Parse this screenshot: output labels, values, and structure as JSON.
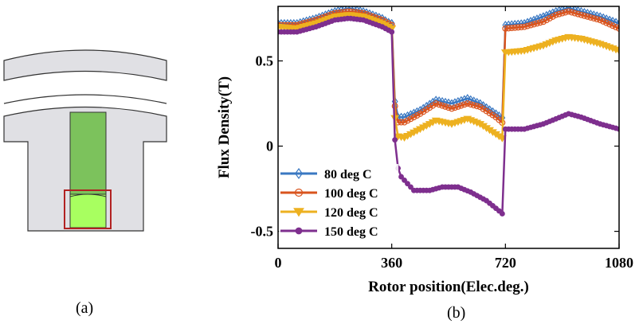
{
  "panel_a": {
    "caption": "(a)",
    "colors": {
      "yoke": "#e0e0e4",
      "magnet_dark": "#7cc25c",
      "magnet_light": "#a8ff60",
      "highlight_box": "#b22222",
      "outline": "#333333"
    }
  },
  "panel_b": {
    "caption": "(b)"
  },
  "chart_data": {
    "type": "line",
    "xlabel": "Rotor position(Elec.deg.)",
    "ylabel": "Flux Density(T)",
    "xlim": [
      0,
      1080
    ],
    "ylim": [
      -0.6,
      0.82
    ],
    "xticks": [
      0,
      360,
      720,
      1080
    ],
    "xtick_labels": [
      "0",
      "360",
      "720",
      "1080"
    ],
    "yticks": [
      -0.5,
      0,
      0.5
    ],
    "ytick_labels": [
      "-0.5",
      "0",
      "0.5"
    ],
    "grid": false,
    "legend_position": "bottom-left",
    "series": [
      {
        "name": "80 deg C",
        "color": "#3a78c2",
        "marker": "diamond",
        "segments": [
          {
            "x_start": 0,
            "x_end": 705,
            "anchors": [
              [
                0,
                0.72
              ],
              [
                60,
                0.72
              ],
              [
                120,
                0.75
              ],
              [
                180,
                0.79
              ],
              [
                225,
                0.81
              ],
              [
                270,
                0.79
              ],
              [
                330,
                0.75
              ],
              [
                345,
                0.73
              ],
              [
                360,
                0.72
              ]
            ],
            "ripple": 0.008
          },
          {
            "x_start": 360,
            "x_end": 705,
            "anchors": [
              [
                360,
                0.72
              ],
              [
                372,
                0.17
              ],
              [
                400,
                0.17
              ],
              [
                450,
                0.21
              ],
              [
                500,
                0.27
              ],
              [
                550,
                0.25
              ],
              [
                600,
                0.28
              ],
              [
                640,
                0.25
              ],
              [
                690,
                0.19
              ],
              [
                715,
                0.16
              ]
            ],
            "ripple": 0.012
          },
          {
            "x_start": 720,
            "x_end": 1080,
            "anchors": [
              [
                720,
                0.71
              ],
              [
                780,
                0.72
              ],
              [
                840,
                0.76
              ],
              [
                880,
                0.79
              ],
              [
                920,
                0.81
              ],
              [
                960,
                0.79
              ],
              [
                1020,
                0.76
              ],
              [
                1080,
                0.72
              ]
            ],
            "ripple": 0.008
          }
        ]
      },
      {
        "name": "100 deg C",
        "color": "#d9541e",
        "marker": "circle",
        "segments": [
          {
            "anchors": [
              [
                0,
                0.71
              ],
              [
                60,
                0.71
              ],
              [
                120,
                0.74
              ],
              [
                180,
                0.78
              ],
              [
                225,
                0.79
              ],
              [
                270,
                0.78
              ],
              [
                330,
                0.74
              ],
              [
                360,
                0.71
              ]
            ],
            "ripple": 0.008
          },
          {
            "anchors": [
              [
                360,
                0.71
              ],
              [
                372,
                0.14
              ],
              [
                400,
                0.14
              ],
              [
                450,
                0.19
              ],
              [
                500,
                0.25
              ],
              [
                550,
                0.22
              ],
              [
                600,
                0.25
              ],
              [
                640,
                0.23
              ],
              [
                690,
                0.17
              ],
              [
                715,
                0.13
              ]
            ],
            "ripple": 0.012
          },
          {
            "anchors": [
              [
                720,
                0.69
              ],
              [
                780,
                0.7
              ],
              [
                840,
                0.73
              ],
              [
                880,
                0.77
              ],
              [
                920,
                0.79
              ],
              [
                960,
                0.77
              ],
              [
                1020,
                0.74
              ],
              [
                1080,
                0.69
              ]
            ],
            "ripple": 0.008
          }
        ]
      },
      {
        "name": "120 deg C",
        "color": "#edb120",
        "marker": "triangle-down",
        "segments": [
          {
            "anchors": [
              [
                0,
                0.7
              ],
              [
                60,
                0.69
              ],
              [
                120,
                0.72
              ],
              [
                180,
                0.76
              ],
              [
                225,
                0.77
              ],
              [
                270,
                0.76
              ],
              [
                330,
                0.72
              ],
              [
                360,
                0.69
              ]
            ],
            "ripple": 0.008
          },
          {
            "anchors": [
              [
                360,
                0.69
              ],
              [
                372,
                0.06
              ],
              [
                400,
                0.05
              ],
              [
                450,
                0.1
              ],
              [
                500,
                0.15
              ],
              [
                550,
                0.13
              ],
              [
                600,
                0.16
              ],
              [
                640,
                0.13
              ],
              [
                690,
                0.07
              ],
              [
                715,
                0.04
              ]
            ],
            "ripple": 0.014
          },
          {
            "anchors": [
              [
                720,
                0.55
              ],
              [
                780,
                0.56
              ],
              [
                840,
                0.59
              ],
              [
                880,
                0.62
              ],
              [
                920,
                0.64
              ],
              [
                960,
                0.63
              ],
              [
                1020,
                0.6
              ],
              [
                1080,
                0.56
              ]
            ],
            "ripple": 0.008
          }
        ]
      },
      {
        "name": "150 deg C",
        "color": "#7e2f8e",
        "marker": "circle-filled",
        "segments": [
          {
            "anchors": [
              [
                0,
                0.67
              ],
              [
                60,
                0.67
              ],
              [
                120,
                0.7
              ],
              [
                180,
                0.74
              ],
              [
                225,
                0.75
              ],
              [
                270,
                0.74
              ],
              [
                330,
                0.7
              ],
              [
                360,
                0.67
              ]
            ],
            "ripple": 0.008
          },
          {
            "anchors": [
              [
                360,
                0.67
              ],
              [
                372,
                -0.09
              ],
              [
                390,
                -0.18
              ],
              [
                430,
                -0.26
              ],
              [
                480,
                -0.26
              ],
              [
                520,
                -0.24
              ],
              [
                570,
                -0.24
              ],
              [
                610,
                -0.27
              ],
              [
                660,
                -0.32
              ],
              [
                700,
                -0.38
              ],
              [
                718,
                -0.41
              ]
            ],
            "ripple": 0.006
          },
          {
            "anchors": [
              [
                720,
                0.1
              ],
              [
                780,
                0.1
              ],
              [
                840,
                0.13
              ],
              [
                880,
                0.16
              ],
              [
                920,
                0.19
              ],
              [
                960,
                0.17
              ],
              [
                1020,
                0.13
              ],
              [
                1080,
                0.1
              ]
            ],
            "ripple": 0.004
          }
        ]
      }
    ]
  }
}
